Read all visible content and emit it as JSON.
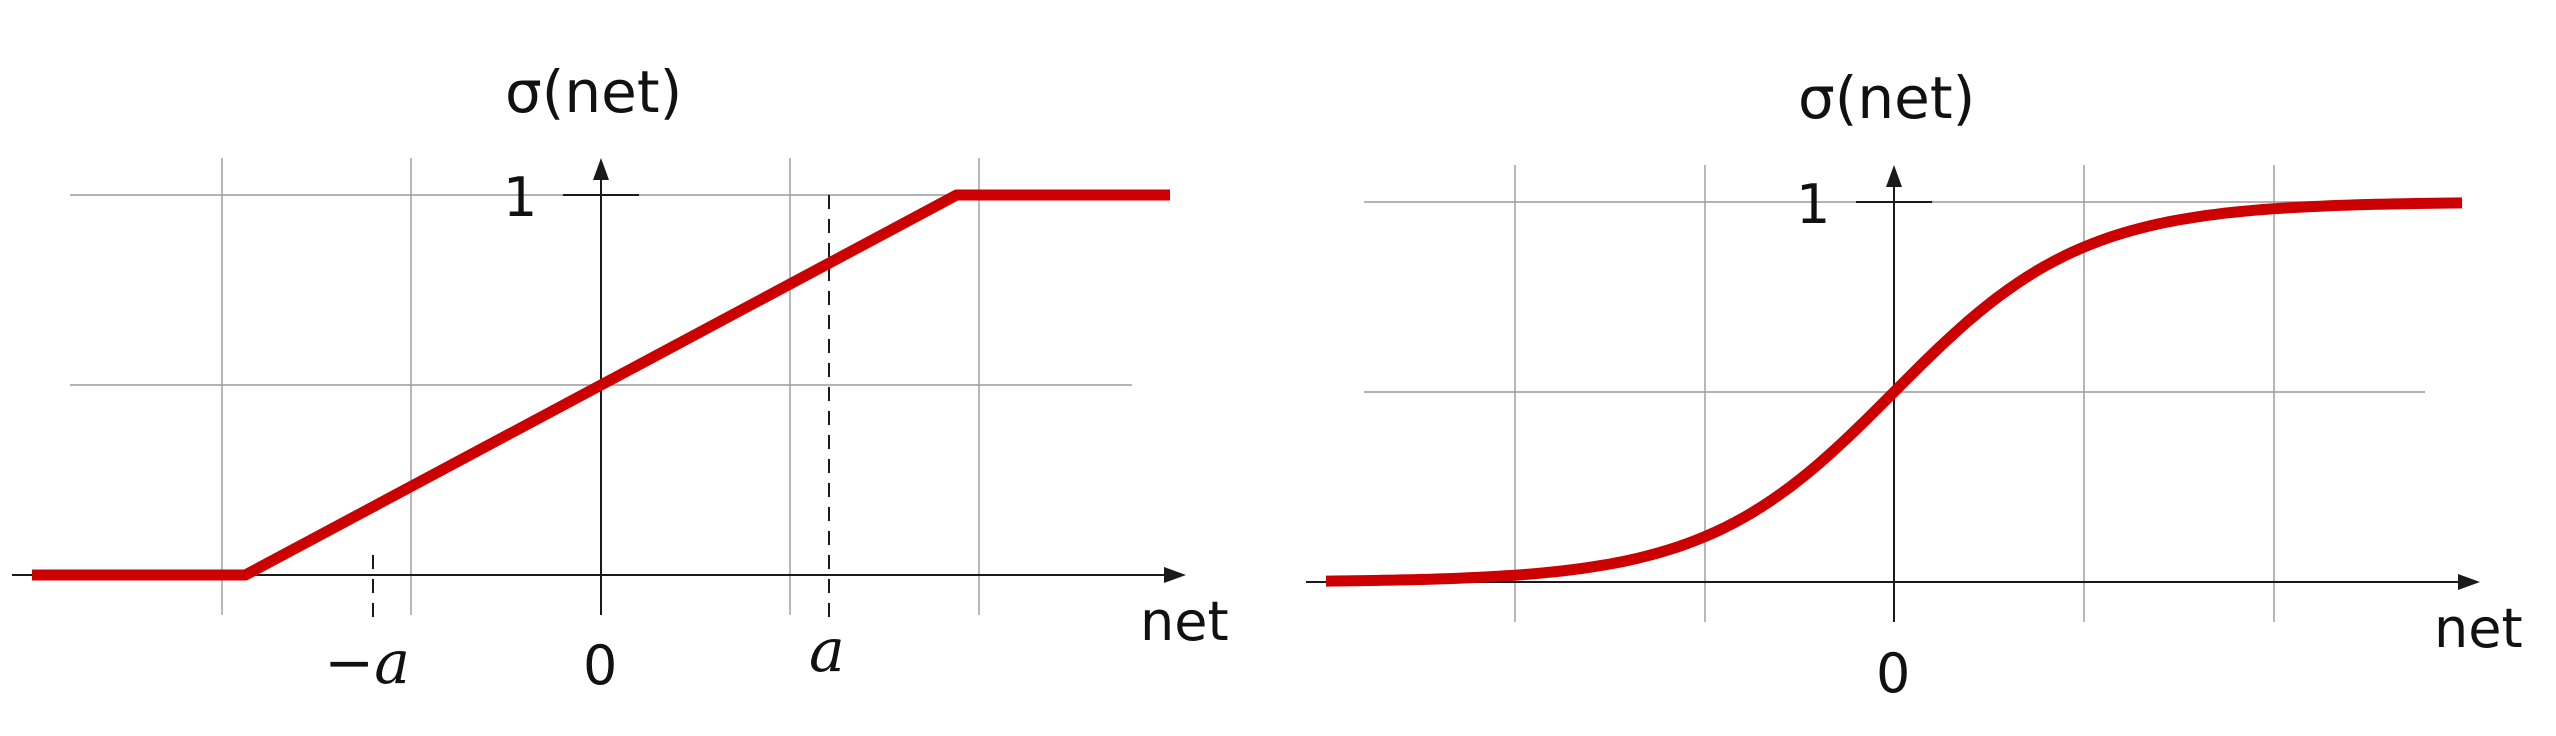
{
  "chart_data": [
    {
      "type": "line",
      "ylabel": "σ(net)",
      "xlabel": "net",
      "x_ticks": [
        {
          "value": -1,
          "label": "−a"
        },
        {
          "value": 0,
          "label": "0"
        },
        {
          "value": 1,
          "label": "a"
        }
      ],
      "y_ticks": [
        {
          "value": 1,
          "label": "1"
        }
      ],
      "xlim": [
        -1.6,
        1.6
      ],
      "ylim": [
        0,
        1
      ],
      "grid": true,
      "colors": {
        "curve": "#cc0000",
        "axis": "#1a1a1a",
        "grid": "#9a9a9a"
      },
      "series": [
        {
          "x": [
            -1.6,
            -1,
            1,
            1.6
          ],
          "y": [
            0,
            0,
            1,
            1
          ]
        }
      ]
    },
    {
      "type": "line",
      "ylabel": "σ(net)",
      "xlabel": "net",
      "x_ticks": [
        {
          "value": 0,
          "label": "0"
        }
      ],
      "y_ticks": [
        {
          "value": 1,
          "label": "1"
        }
      ],
      "xlim": [
        -6,
        6
      ],
      "ylim": [
        0,
        1
      ],
      "grid": true,
      "colors": {
        "curve": "#cc0000",
        "axis": "#1a1a1a",
        "grid": "#9a9a9a"
      },
      "series": [
        {
          "x": [
            -6,
            -5,
            -4,
            -3,
            -2,
            -1,
            0,
            1,
            2,
            3,
            4,
            5,
            6
          ],
          "y": [
            0.002,
            0.007,
            0.018,
            0.047,
            0.119,
            0.269,
            0.5,
            0.731,
            0.881,
            0.953,
            0.982,
            0.993,
            0.998
          ]
        }
      ]
    }
  ]
}
